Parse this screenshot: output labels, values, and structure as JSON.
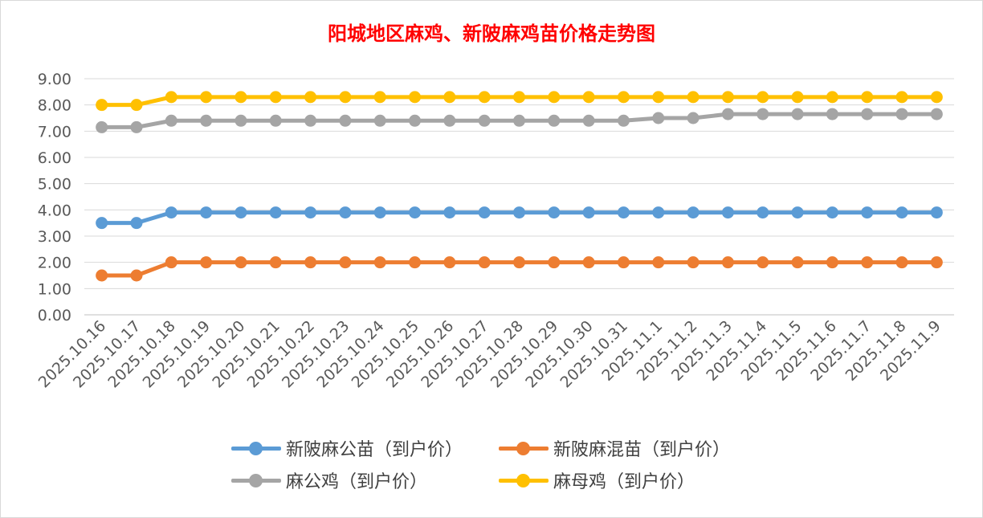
{
  "chart_data": {
    "type": "line",
    "title": "阳城地区麻鸡、新陂麻鸡苗价格走势图",
    "xlabel": "",
    "ylabel": "",
    "ylim": [
      0,
      9
    ],
    "yticks": [
      "0.00",
      "1.00",
      "2.00",
      "3.00",
      "4.00",
      "5.00",
      "6.00",
      "7.00",
      "8.00",
      "9.00"
    ],
    "grid": true,
    "legend": "bottom",
    "categories": [
      "2025.10.16",
      "2025.10.17",
      "2025.10.18",
      "2025.10.19",
      "2025.10.20",
      "2025.10.21",
      "2025.10.22",
      "2025.10.23",
      "2025.10.24",
      "2025.10.25",
      "2025.10.26",
      "2025.10.27",
      "2025.10.28",
      "2025.10.29",
      "2025.10.30",
      "2025.10.31",
      "2025.11.1",
      "2025.11.2",
      "2025.11.3",
      "2025.11.4",
      "2025.11.5",
      "2025.11.6",
      "2025.11.7",
      "2025.11.8",
      "2025.11.9"
    ],
    "series": [
      {
        "name": "新陂麻公苗（到户价）",
        "color": "#5b9bd5",
        "values": [
          3.5,
          3.5,
          3.9,
          3.9,
          3.9,
          3.9,
          3.9,
          3.9,
          3.9,
          3.9,
          3.9,
          3.9,
          3.9,
          3.9,
          3.9,
          3.9,
          3.9,
          3.9,
          3.9,
          3.9,
          3.9,
          3.9,
          3.9,
          3.9,
          3.9
        ]
      },
      {
        "name": "新陂麻混苗（到户价）",
        "color": "#ed7d31",
        "values": [
          1.5,
          1.5,
          2.0,
          2.0,
          2.0,
          2.0,
          2.0,
          2.0,
          2.0,
          2.0,
          2.0,
          2.0,
          2.0,
          2.0,
          2.0,
          2.0,
          2.0,
          2.0,
          2.0,
          2.0,
          2.0,
          2.0,
          2.0,
          2.0,
          2.0
        ]
      },
      {
        "name": "麻公鸡（到户价）",
        "color": "#a5a5a5",
        "values": [
          7.15,
          7.15,
          7.4,
          7.4,
          7.4,
          7.4,
          7.4,
          7.4,
          7.4,
          7.4,
          7.4,
          7.4,
          7.4,
          7.4,
          7.4,
          7.4,
          7.5,
          7.5,
          7.65,
          7.65,
          7.65,
          7.65,
          7.65,
          7.65,
          7.65
        ]
      },
      {
        "name": "麻母鸡（到户价）",
        "color": "#ffc000",
        "values": [
          8.0,
          8.0,
          8.3,
          8.3,
          8.3,
          8.3,
          8.3,
          8.3,
          8.3,
          8.3,
          8.3,
          8.3,
          8.3,
          8.3,
          8.3,
          8.3,
          8.3,
          8.3,
          8.3,
          8.3,
          8.3,
          8.3,
          8.3,
          8.3,
          8.3
        ]
      }
    ]
  }
}
